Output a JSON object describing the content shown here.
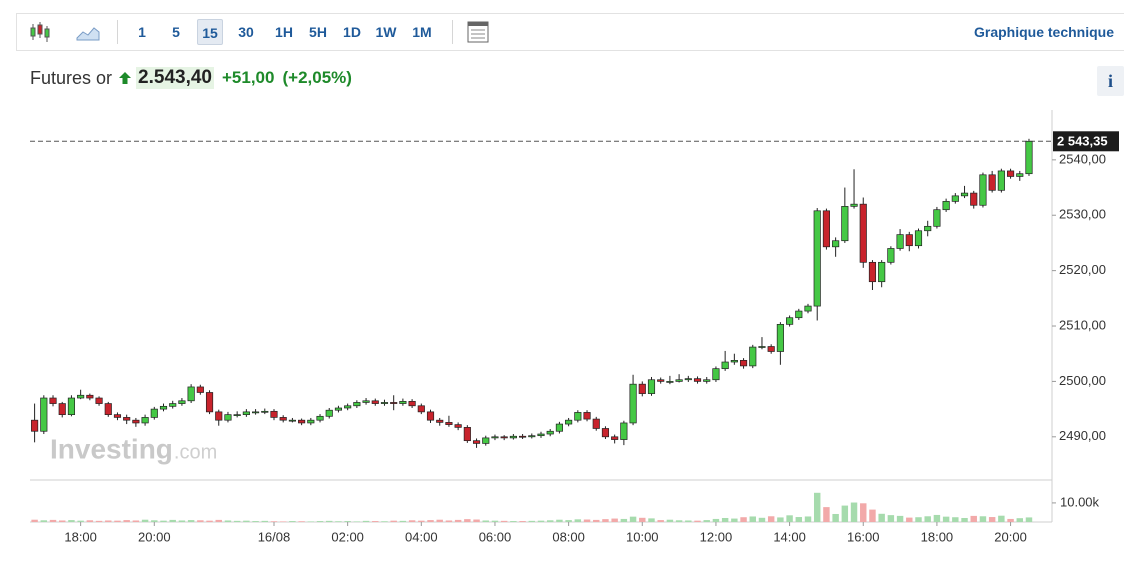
{
  "toolbar": {
    "intervals": [
      "1",
      "5",
      "15",
      "30",
      "1H",
      "5H",
      "1D",
      "1W",
      "1M"
    ],
    "active_interval_index": 2,
    "link": "Graphique technique"
  },
  "header": {
    "name": "Futures or",
    "price": "2.543,40",
    "change": "+51,00",
    "change_percent": "(+2,05%)",
    "info": "i"
  },
  "watermark": {
    "brand": "Investing",
    "suffix": ".com"
  },
  "chart_data": {
    "type": "candlestick",
    "up_color": "#45c845",
    "down_color": "#c8232c",
    "xlim": [
      -0.5,
      110.5
    ],
    "xticks": [
      {
        "value": 5,
        "label": "18:00"
      },
      {
        "value": 13,
        "label": "20:00"
      },
      {
        "value": 26,
        "label": "16/08"
      },
      {
        "value": 34,
        "label": "02:00"
      },
      {
        "value": 42,
        "label": "04:00"
      },
      {
        "value": 50,
        "label": "06:00"
      },
      {
        "value": 58,
        "label": "08:00"
      },
      {
        "value": 66,
        "label": "10:00"
      },
      {
        "value": 74,
        "label": "12:00"
      },
      {
        "value": 82,
        "label": "14:00"
      },
      {
        "value": 90,
        "label": "16:00"
      },
      {
        "value": 98,
        "label": "18:00"
      },
      {
        "value": 106,
        "label": "20:00"
      }
    ],
    "ylim": [
      2482.2,
      2549
    ],
    "yticks": [
      {
        "value": 2490,
        "label": "2490,00"
      },
      {
        "value": 2500,
        "label": "2500,00"
      },
      {
        "value": 2510,
        "label": "2510,00"
      },
      {
        "value": 2520,
        "label": "2520,00"
      },
      {
        "value": 2530,
        "label": "2530,00"
      },
      {
        "value": 2540,
        "label": "2540,00"
      }
    ],
    "last_price": {
      "value": 2543.35,
      "label": "2 543,35"
    },
    "open": [
      2493,
      2491,
      2497,
      2496,
      2494,
      2497,
      2497.5,
      2497,
      2496,
      2494,
      2493.5,
      2493,
      2492.5,
      2493.5,
      2495,
      2495.5,
      2496,
      2496.5,
      2499,
      2498,
      2494.5,
      2493,
      2494,
      2494,
      2494.5,
      2494.5,
      2494.6,
      2493.5,
      2493,
      2493,
      2492.5,
      2493,
      2493.7,
      2494.8,
      2495.2,
      2495.6,
      2496.2,
      2496.5,
      2496,
      2496.2,
      2496,
      2496.4,
      2495.6,
      2494.5,
      2493,
      2492.6,
      2492.2,
      2491.7,
      2489.3,
      2488.8,
      2489.8,
      2490,
      2489.8,
      2490.1,
      2490,
      2490.2,
      2490.5,
      2491,
      2492.3,
      2493,
      2494.4,
      2493.2,
      2491.5,
      2490,
      2489.5,
      2492.5,
      2499.5,
      2497.8,
      2500.3,
      2500,
      2500,
      2500.3,
      2500.5,
      2500,
      2500.3,
      2502.3,
      2503.5,
      2503.8,
      2502.8,
      2506.2,
      2506.3,
      2505.4,
      2510.3,
      2511.5,
      2512.7,
      2513.6,
      2530.8,
      2524.3,
      2525.4,
      2531.6,
      2532,
      2521.5,
      2518,
      2521.5,
      2524,
      2526.5,
      2524.5,
      2527.2,
      2528,
      2531,
      2532.5,
      2533.5,
      2534,
      2531.8,
      2537.3,
      2534.5,
      2538,
      2537,
      2537.5
    ],
    "high": [
      2496,
      2497.5,
      2497.5,
      2496.3,
      2497.5,
      2498.5,
      2497.8,
      2497.3,
      2496.3,
      2494.4,
      2494,
      2493.4,
      2494,
      2495.4,
      2496,
      2496.5,
      2497,
      2499.5,
      2499.4,
      2498.4,
      2494.9,
      2494.5,
      2494.6,
      2495,
      2495,
      2495.1,
      2495,
      2493.9,
      2493.4,
      2493.3,
      2493.4,
      2494.1,
      2495.2,
      2495.6,
      2496,
      2496.6,
      2497,
      2496.9,
      2496.7,
      2497.5,
      2496.9,
      2496.8,
      2496,
      2494.9,
      2493.4,
      2493.8,
      2492.6,
      2492.1,
      2489.7,
      2490.2,
      2490.4,
      2490.3,
      2490.5,
      2490.5,
      2490.6,
      2490.9,
      2491.4,
      2492.7,
      2493.4,
      2494.8,
      2494.8,
      2493.6,
      2491.9,
      2490.4,
      2492.9,
      2501.2,
      2500,
      2500.8,
      2500.7,
      2501,
      2501.3,
      2501,
      2500.9,
      2500.8,
      2502.7,
      2505.5,
      2505,
      2504.2,
      2506.6,
      2508,
      2506.7,
      2510.7,
      2511.9,
      2513.1,
      2514,
      2531.3,
      2531.2,
      2526,
      2535,
      2538.3,
      2533.2,
      2521.9,
      2521.9,
      2524.4,
      2527.5,
      2527,
      2527.6,
      2529,
      2531.5,
      2533,
      2534,
      2535.3,
      2534.4,
      2537.7,
      2538,
      2538.4,
      2538.4,
      2538,
      2543.8
    ],
    "low": [
      2489,
      2490.5,
      2495.5,
      2493.5,
      2493.7,
      2496.8,
      2496.6,
      2495.6,
      2493.6,
      2493,
      2492.3,
      2491.8,
      2492,
      2493.1,
      2494.6,
      2495.1,
      2495.6,
      2496.1,
      2497.6,
      2494.1,
      2492,
      2492.6,
      2493.5,
      2493.6,
      2494,
      2494.1,
      2493,
      2492.6,
      2492.6,
      2492.1,
      2492.1,
      2492.6,
      2493.3,
      2494.4,
      2494.8,
      2495.2,
      2495.8,
      2495.6,
      2495.6,
      2494.8,
      2495.6,
      2495.2,
      2494.1,
      2492.5,
      2492,
      2491.8,
      2491.2,
      2488.9,
      2488,
      2488.4,
      2489.4,
      2489.4,
      2489.5,
      2489.6,
      2489.7,
      2489.8,
      2490.1,
      2490.6,
      2491.9,
      2492.6,
      2492.8,
      2491.1,
      2489.6,
      2488.8,
      2488.5,
      2492.1,
      2497.3,
      2497.4,
      2499.6,
      2499.5,
      2499.8,
      2499.9,
      2499.6,
      2499.6,
      2499.9,
      2501.9,
      2503,
      2502.3,
      2502.4,
      2505.8,
      2505,
      2503,
      2509.9,
      2511.1,
      2512.3,
      2511,
      2523.8,
      2522.5,
      2525,
      2531.2,
      2520.5,
      2516.5,
      2517,
      2521.1,
      2523.6,
      2523.5,
      2524,
      2526.2,
      2527.6,
      2530.6,
      2532.1,
      2533.1,
      2531.2,
      2531.4,
      2534.1,
      2534.1,
      2536.6,
      2536.2,
      2537.1
    ],
    "close": [
      2491,
      2497,
      2496,
      2494,
      2497,
      2497.5,
      2497,
      2496,
      2494,
      2493.5,
      2493,
      2492.5,
      2493.5,
      2495,
      2495.5,
      2496,
      2496.5,
      2499,
      2498,
      2494.5,
      2493,
      2494,
      2494,
      2494.5,
      2494.5,
      2494.6,
      2493.5,
      2493,
      2493,
      2492.5,
      2493,
      2493.7,
      2494.8,
      2495.2,
      2495.6,
      2496.2,
      2496.5,
      2496,
      2496.2,
      2496,
      2496.4,
      2495.6,
      2494.5,
      2493,
      2492.6,
      2492.2,
      2491.7,
      2489.3,
      2488.8,
      2489.8,
      2490,
      2489.8,
      2490.1,
      2490,
      2490.2,
      2490.5,
      2491,
      2492.3,
      2493,
      2494.4,
      2493.2,
      2491.5,
      2490,
      2489.5,
      2492.5,
      2499.5,
      2497.8,
      2500.3,
      2500,
      2500,
      2500.3,
      2500.5,
      2500,
      2500.3,
      2502.3,
      2503.5,
      2503.8,
      2502.8,
      2506.2,
      2506.3,
      2505.4,
      2510.3,
      2511.5,
      2512.7,
      2513.6,
      2530.8,
      2524.3,
      2525.4,
      2531.6,
      2532,
      2521.5,
      2518,
      2521.5,
      2524,
      2526.5,
      2524.5,
      2527.2,
      2528,
      2531,
      2532.5,
      2533.5,
      2534,
      2531.8,
      2537.3,
      2534.5,
      2538,
      2537,
      2537.5,
      2543.35
    ],
    "volume": {
      "up_color": "#a6dbad",
      "down_color": "#f2a9a9",
      "ylim": [
        0,
        22000
      ],
      "yticks": [
        {
          "value": 10000,
          "label": "10.00k"
        }
      ],
      "values": [
        1200,
        900,
        1100,
        800,
        1000,
        700,
        900,
        600,
        800,
        700,
        1000,
        800,
        1200,
        900,
        700,
        1100,
        800,
        1000,
        900,
        700,
        1100,
        800,
        600,
        700,
        500,
        600,
        400,
        300,
        500,
        400,
        300,
        500,
        600,
        400,
        500,
        300,
        600,
        500,
        400,
        700,
        600,
        900,
        700,
        1000,
        1200,
        800,
        1100,
        1500,
        1300,
        800,
        700,
        600,
        500,
        500,
        600,
        700,
        900,
        1200,
        1000,
        1400,
        1300,
        1100,
        1500,
        1800,
        1600,
        2800,
        2200,
        1900,
        1000,
        1200,
        900,
        800,
        700,
        1000,
        1600,
        2100,
        1800,
        2500,
        2900,
        2200,
        3000,
        2400,
        3500,
        2600,
        2900,
        15300,
        7800,
        4200,
        8600,
        10200,
        9800,
        6500,
        4300,
        3600,
        3200,
        2300,
        2500,
        3000,
        3700,
        2800,
        2500,
        2100,
        3200,
        3000,
        2600,
        3300,
        1600,
        2000,
        2400
      ]
    }
  }
}
